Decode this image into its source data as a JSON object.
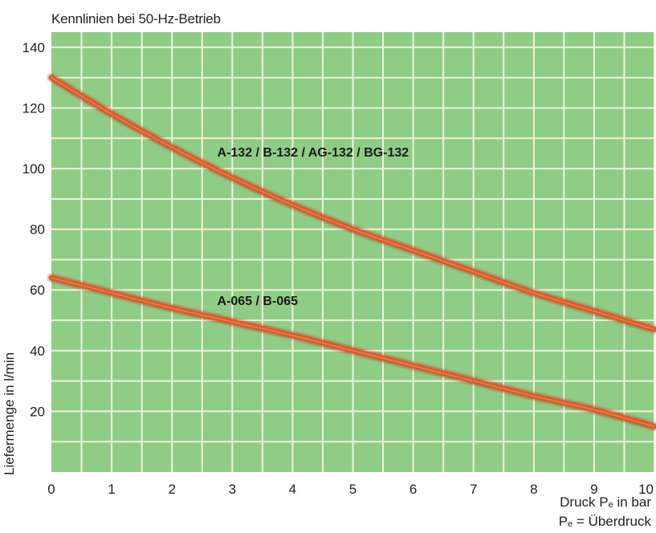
{
  "chart_data": {
    "type": "line",
    "title": "Kennlinien bei 50-Hz-Betrieb",
    "ylabel": "Liefermenge in l/min",
    "xlabel_main": "Druck P",
    "xlabel_sub": "e",
    "xlabel_tail": " in bar",
    "xnote_main": "P",
    "xnote_sub": "e",
    "xnote_tail": " = Überdruck",
    "xlim": [
      0,
      10
    ],
    "ylim": [
      0,
      145
    ],
    "x_ticks": [
      "0",
      "1",
      "2",
      "3",
      "4",
      "5",
      "6",
      "7",
      "8",
      "9",
      "10"
    ],
    "y_ticks": [
      "20",
      "40",
      "60",
      "80",
      "100",
      "120",
      "140"
    ],
    "grid": true,
    "series": [
      {
        "name": "A-132 / B-132 / AG-132 / BG-132",
        "x": [
          0,
          1,
          2,
          3,
          4,
          5,
          6,
          7,
          8,
          9,
          10
        ],
        "y": [
          130,
          118,
          107,
          97,
          88,
          80,
          73,
          66,
          59,
          53,
          47
        ]
      },
      {
        "name": "A-065 / B-065",
        "x": [
          0,
          1,
          2,
          3,
          4,
          5,
          6,
          7,
          8,
          9,
          10
        ],
        "y": [
          64,
          59,
          54,
          49.5,
          45,
          40,
          35,
          30,
          25,
          20.5,
          15
        ]
      }
    ],
    "colors": {
      "plot_background": "#8fcd86",
      "grid": "#eef3d8",
      "line": "#e2572a"
    }
  }
}
